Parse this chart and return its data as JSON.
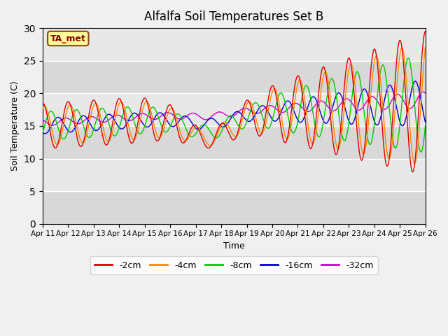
{
  "title": "Alfalfa Soil Temperatures Set B",
  "xlabel": "Time",
  "ylabel": "Soil Temperature (C)",
  "ylim": [
    0,
    30
  ],
  "yticks": [
    0,
    5,
    10,
    15,
    20,
    25,
    30
  ],
  "xtick_labels": [
    "Apr 11",
    "Apr 12",
    "Apr 13",
    "Apr 14",
    "Apr 15",
    "Apr 16",
    "Apr 17",
    "Apr 18",
    "Apr 19",
    "Apr 20",
    "Apr 21",
    "Apr 22",
    "Apr 23",
    "Apr 24",
    "Apr 25",
    "Apr 26"
  ],
  "annotation_text": "TA_met",
  "colors": {
    "m2cm": "#dd0000",
    "m4cm": "#ff8800",
    "m8cm": "#00cc00",
    "m16cm": "#0000cc",
    "m32cm": "#cc00cc"
  },
  "legend_labels": [
    "-2cm",
    "-4cm",
    "-8cm",
    "-16cm",
    "-32cm"
  ],
  "legend_colors": [
    "#dd0000",
    "#ff8800",
    "#00cc00",
    "#0000cc",
    "#cc00cc"
  ],
  "plot_bg": "#e8e8e8",
  "fig_bg": "#f0f0f0",
  "grid_color": "#ffffff",
  "title_fontsize": 12,
  "tick_fontsize": 7.5,
  "label_fontsize": 9
}
